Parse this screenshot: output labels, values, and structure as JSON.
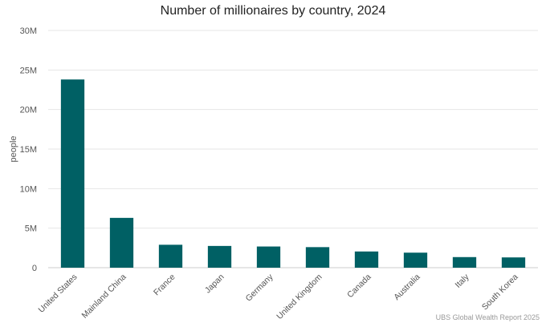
{
  "chart_data": {
    "type": "bar",
    "title": "Number of millionaires by country, 2024",
    "ylabel": "people",
    "xlabel": "",
    "categories": [
      "United States",
      "Mainland China",
      "France",
      "Japan",
      "Germany",
      "United Kingdom",
      "Canada",
      "Australia",
      "Italy",
      "South Korea"
    ],
    "values": [
      23800000,
      6300000,
      2900000,
      2750000,
      2680000,
      2600000,
      2050000,
      1900000,
      1340000,
      1300000
    ],
    "ylim": [
      0,
      30000000
    ],
    "yticks": [
      0,
      5000000,
      10000000,
      15000000,
      20000000,
      25000000,
      30000000
    ],
    "ytick_labels": [
      "0",
      "5M",
      "10M",
      "15M",
      "20M",
      "25M",
      "30M"
    ],
    "grid": true,
    "bar_color": "#006064",
    "source": "UBS Global Wealth Report 2025"
  }
}
